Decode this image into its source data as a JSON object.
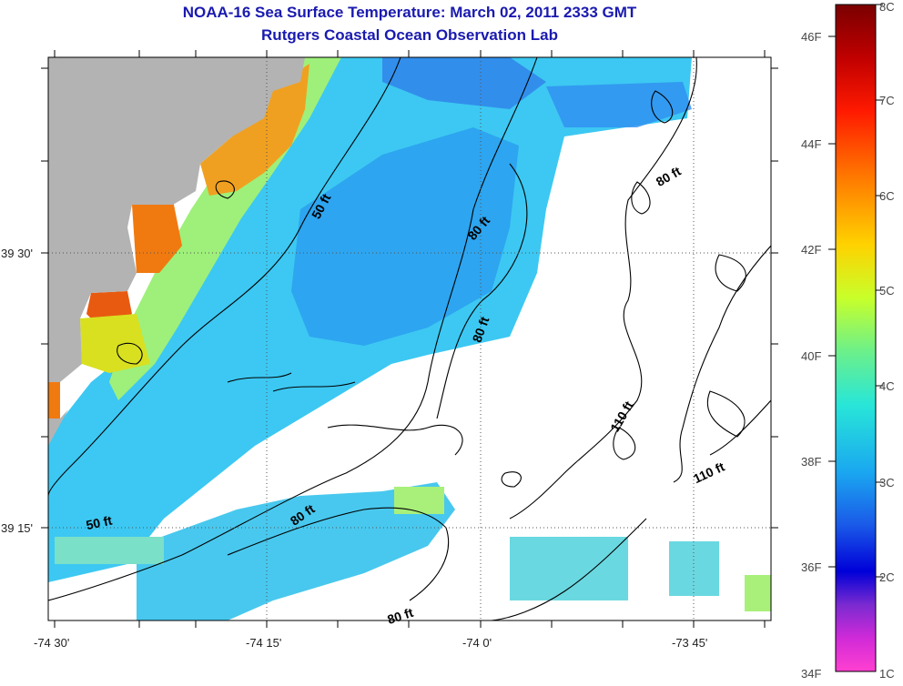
{
  "header": {
    "title": "NOAA-16 Sea Surface Temperature:  March 02, 2011 2333 GMT",
    "subtitle": "Rutgers Coastal Ocean Observation Lab"
  },
  "map": {
    "lon_labels": [
      "-74 30'",
      "-74 15'",
      "-74 0'",
      "-73 45'"
    ],
    "lat_labels": [
      "39 30'",
      "39 15'"
    ],
    "contour_labels": [
      "50 ft",
      "80 ft",
      "80 ft",
      "80 ft",
      "80 ft",
      "110 ft",
      "110 ft",
      "50 ft",
      "80 ft"
    ],
    "colors": {
      "land": "#b3b3b3",
      "cloud_no_data": "#ffffff",
      "contour": "#000000"
    }
  },
  "colorbar": {
    "fahrenheit_labels": [
      "46F",
      "44F",
      "42F",
      "40F",
      "38F",
      "36F",
      "34F"
    ],
    "celsius_labels": [
      "8C",
      "7C",
      "6C",
      "5C",
      "4C",
      "3C",
      "2C",
      "1C"
    ]
  }
}
